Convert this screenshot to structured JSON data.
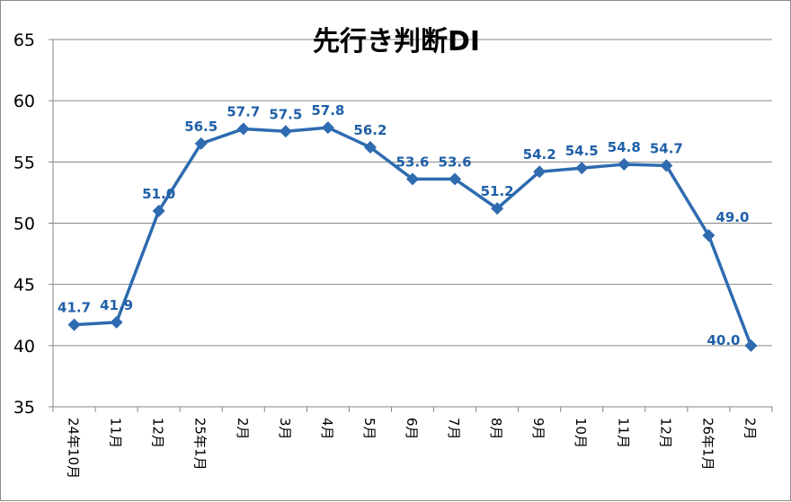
{
  "chart_data": {
    "type": "line",
    "title": "先行き判断DI",
    "xlabel": "",
    "ylabel": "",
    "ylim": [
      35,
      65
    ],
    "yticks": [
      35,
      40,
      45,
      50,
      55,
      60,
      65
    ],
    "grid": true,
    "legend": "none",
    "categories": [
      "24年10月",
      "11月",
      "12月",
      "25年1月",
      "2月",
      "3月",
      "4月",
      "5月",
      "6月",
      "7月",
      "8月",
      "9月",
      "10月",
      "11月",
      "12月",
      "26年1月",
      "2月"
    ],
    "series": [
      {
        "values": [
          41.7,
          41.9,
          51.0,
          56.5,
          57.7,
          57.5,
          57.8,
          56.2,
          53.6,
          53.6,
          51.2,
          54.2,
          54.5,
          54.8,
          54.7,
          49.0,
          40.0
        ],
        "labels": [
          "41.7",
          "41.9",
          "51.0",
          "56.5",
          "57.7",
          "57.5",
          "57.8",
          "56.2",
          "53.6",
          "53.6",
          "51.2",
          "54.2",
          "54.5",
          "54.8",
          "54.7",
          "49.0",
          "40.0"
        ],
        "color": "#2e6bb0"
      }
    ],
    "colors": {
      "line": "#2e6bb0",
      "label": "#1f5fa8",
      "grid": "#868686"
    }
  }
}
